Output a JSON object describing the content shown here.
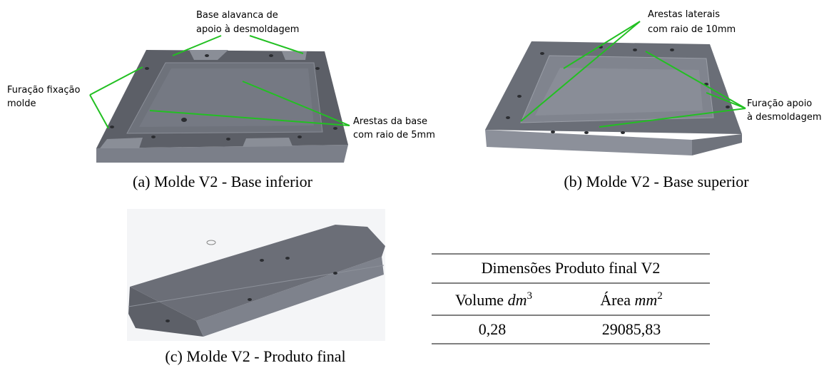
{
  "figures": [
    {
      "caption": "(a) Molde V2 - Base inferior",
      "annotations": [
        [
          "Base alavanca de",
          "apoio à desmoldagem"
        ],
        [
          "Furação fixação",
          "molde"
        ],
        [
          "Arestas da base",
          "com raio de 5mm"
        ]
      ]
    },
    {
      "caption": "(b) Molde V2 - Base superior",
      "annotations": [
        [
          "Arestas laterais",
          "com raio de 10mm"
        ],
        [
          "Furação apoio",
          "à desmoldagem"
        ]
      ]
    },
    {
      "caption": "(c) Molde V2 - Produto final",
      "annotations": []
    }
  ],
  "table": {
    "title": "Dimensões Produto final V2",
    "headers": [
      {
        "text": "Volume",
        "unit": "dm",
        "exp": "3"
      },
      {
        "text": "Área",
        "unit": "mm",
        "exp": "2"
      }
    ],
    "rows": [
      [
        "0,28",
        "29085,83"
      ]
    ]
  }
}
